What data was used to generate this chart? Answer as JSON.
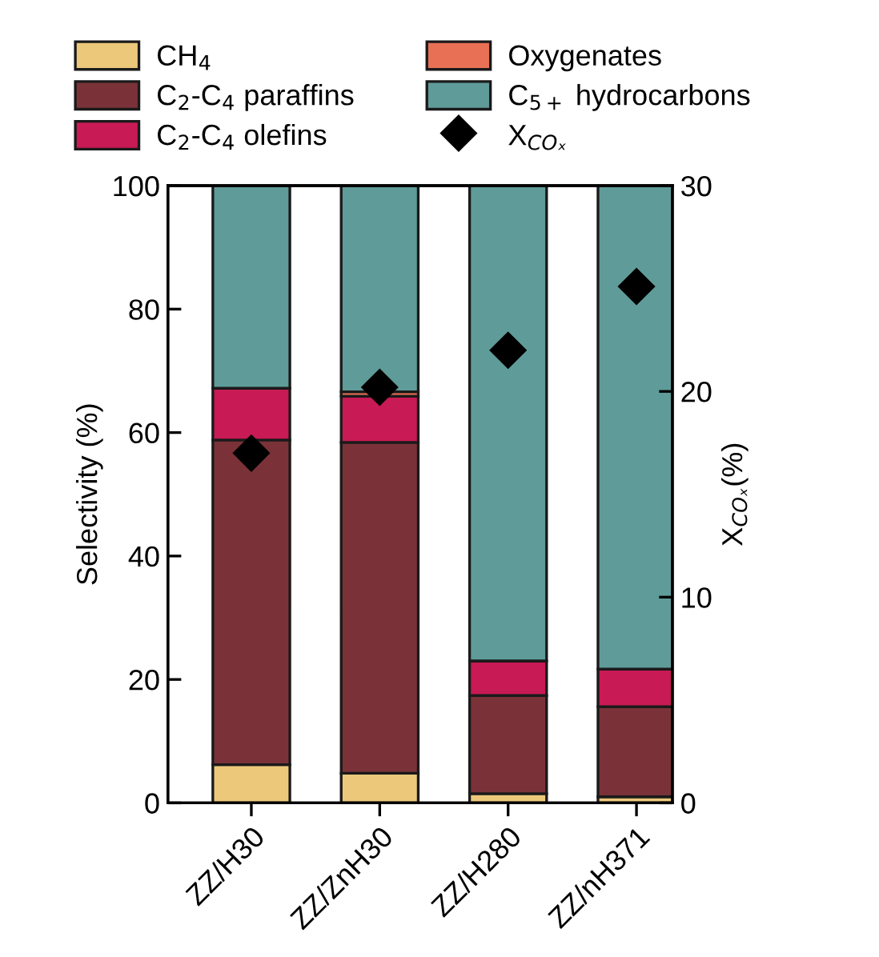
{
  "chart_data": {
    "type": "bar",
    "stacked": true,
    "categories": [
      "ZZ/H30",
      "ZZ/ZnH30",
      "ZZ/H280",
      "ZZ/nH371"
    ],
    "ylabel": "Selectivity (%)",
    "y2label": "X$_{COₓ}$(%)",
    "ylim": [
      0,
      100
    ],
    "yticks": [
      0,
      20,
      40,
      60,
      80,
      100
    ],
    "y2lim": [
      0,
      30
    ],
    "y2ticks": [
      0,
      10,
      20,
      30
    ],
    "grid": false,
    "legend": "top",
    "series": [
      {
        "name": "CH$_{4}$",
        "color": "#ecc87b",
        "values": [
          6.2,
          4.8,
          1.5,
          1.0
        ]
      },
      {
        "name": "C$_{2}$-C$_{4}$ paraffins",
        "color": "#7a3238",
        "values": [
          52.6,
          53.6,
          15.9,
          14.6
        ]
      },
      {
        "name": "C$_{2}$-C$_{4}$ olefins",
        "color": "#c81a55",
        "values": [
          8.4,
          7.5,
          5.6,
          6.1
        ]
      },
      {
        "name": "Oxygenates",
        "color": "#e87155",
        "values": [
          0,
          0.7,
          0,
          0
        ]
      },
      {
        "name": "C$_{5+}$ hydrocarbons",
        "color": "#5f9b99",
        "values": [
          32.8,
          33.4,
          77.0,
          78.3
        ]
      },
      {
        "name": "X$_{COₓ}$",
        "type": "scatter",
        "axis": "y2",
        "marker": "diamond",
        "color": "#000000",
        "values": [
          17.0,
          20.2,
          22.0,
          25.1
        ]
      }
    ]
  }
}
